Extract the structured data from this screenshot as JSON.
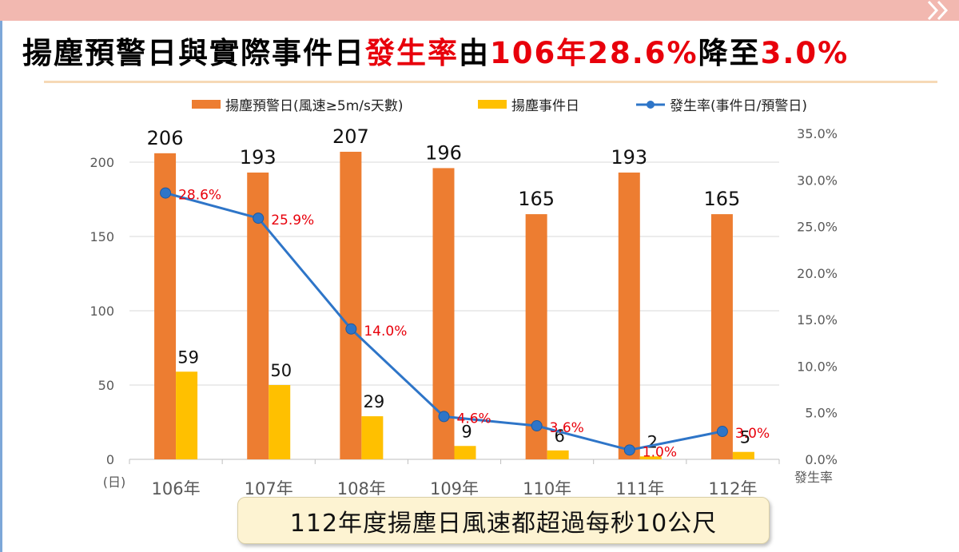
{
  "header": {
    "title_parts": [
      {
        "text": "揚塵預警日與實際事件日",
        "red": false
      },
      {
        "text": "發生率",
        "red": true
      },
      {
        "text": "由",
        "red": false
      },
      {
        "text": "106年28.6%",
        "red": true
      },
      {
        "text": "降至",
        "red": false
      },
      {
        "text": "3.0%",
        "red": true
      }
    ]
  },
  "chart_data": {
    "type": "bar",
    "categories": [
      "106年",
      "107年",
      "108年",
      "109年",
      "110年",
      "111年",
      "112年"
    ],
    "series": [
      {
        "name": "揚塵預警日(風速≥5m/s天數)",
        "type": "bar",
        "axis": "left",
        "color": "#ed7d31",
        "values": [
          206,
          193,
          207,
          196,
          165,
          193,
          165
        ]
      },
      {
        "name": "揚塵事件日",
        "type": "bar",
        "axis": "left",
        "color": "#ffc000",
        "values": [
          59,
          50,
          29,
          9,
          6,
          2,
          5
        ]
      },
      {
        "name": "發生率(事件日/預警日)",
        "type": "line",
        "axis": "right",
        "color": "#2e75c8",
        "values": [
          28.6,
          25.9,
          14.0,
          4.6,
          3.6,
          1.0,
          3.0
        ],
        "labels": [
          "28.6%",
          "25.9%",
          "14.0%",
          "4.6%",
          "3.6%",
          "1.0%",
          "3.0%"
        ]
      }
    ],
    "y_left": {
      "ylim": [
        0,
        200
      ],
      "ticks": [
        0,
        50,
        100,
        150,
        200
      ],
      "unit_label": "(日)"
    },
    "y_right": {
      "ylim": [
        0,
        35
      ],
      "ticks": [
        "0.0%",
        "5.0%",
        "10.0%",
        "15.0%",
        "20.0%",
        "25.0%",
        "30.0%",
        "35.0%"
      ],
      "ylabel": "發生率"
    },
    "grid": true,
    "legend_position": "top"
  },
  "caption": {
    "text": "112年度揚塵日風速都超過每秒10公尺"
  }
}
